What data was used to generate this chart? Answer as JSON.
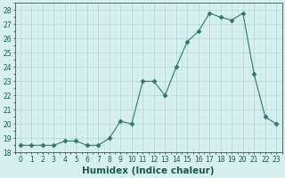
{
  "x": [
    0,
    1,
    2,
    3,
    4,
    5,
    6,
    7,
    8,
    9,
    10,
    11,
    12,
    13,
    14,
    15,
    16,
    17,
    18,
    19,
    20,
    21,
    22,
    23
  ],
  "y": [
    18.5,
    18.5,
    18.5,
    18.5,
    18.8,
    18.8,
    18.5,
    18.5,
    19.0,
    20.2,
    20.0,
    23.0,
    23.0,
    22.0,
    24.0,
    25.8,
    26.5,
    27.8,
    27.5,
    27.3,
    27.8,
    23.5,
    20.5,
    20.0
  ],
  "line_color": "#2d7a6a",
  "marker": "D",
  "marker_size": 2.5,
  "bg_color": "#d6f0f0",
  "grid_major_color": "#b8dada",
  "grid_minor_color": "#c8e8e8",
  "xlabel": "Humidex (Indice chaleur)",
  "ylim": [
    18,
    28.5
  ],
  "xlim": [
    -0.5,
    23.5
  ],
  "yticks": [
    18,
    19,
    20,
    21,
    22,
    23,
    24,
    25,
    26,
    27,
    28
  ],
  "xticks": [
    0,
    1,
    2,
    3,
    4,
    5,
    6,
    7,
    8,
    9,
    10,
    11,
    12,
    13,
    14,
    15,
    16,
    17,
    18,
    19,
    20,
    21,
    22,
    23
  ],
  "tick_label_fontsize": 5.5,
  "xlabel_fontsize": 7.5,
  "tick_color": "#1a5a4a",
  "spine_color": "#2d7a6a"
}
